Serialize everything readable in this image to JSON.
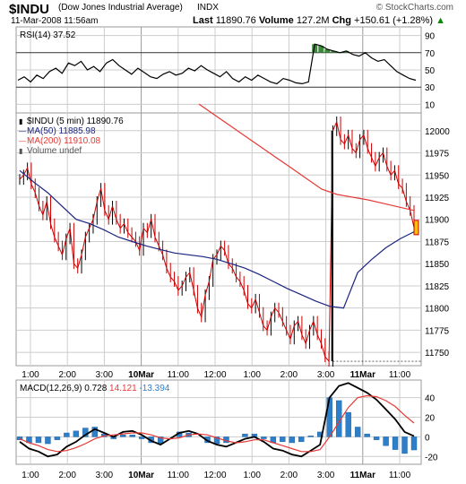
{
  "header": {
    "title": "$INDU",
    "subtitle": "(Dow Jones Industrial Average)",
    "ticker": "INDX",
    "date": "11-Mar-2008 11:56am",
    "last_label": "Last",
    "last_value": "11890.76",
    "volume_label": "Volume",
    "volume_value": "127.2M",
    "chg_label": "Chg",
    "chg_value": "+150.61 (+1.28%)",
    "chg_arrow": "▲",
    "brand": "© StockCharts.com",
    "brand_mark": "©"
  },
  "colors": {
    "price_up": "#000000",
    "price_down": "#cc0000",
    "ma50": "#1a237e",
    "ma200": "#e53935",
    "macd_line": "#000000",
    "signal_line": "#e53935",
    "histogram": "#2e7fc9",
    "rsi_line": "#000000",
    "rsi_fill_overbought": "#3a8a3a",
    "gridline": "#cccccc"
  },
  "rsi_panel": {
    "label": "RSI(14)",
    "value": "37.52",
    "tick_labels": [
      "90",
      "70",
      "50",
      "30",
      "10"
    ]
  },
  "price_panel": {
    "legend": [
      {
        "marker": "▮",
        "text": "$INDU (5 min) 11890.76",
        "color": "#000000"
      },
      {
        "marker": "—",
        "text": "MA(50) 11885.98",
        "color": "#1a237e"
      },
      {
        "marker": "—",
        "text": "MA(200) 11910.08",
        "color": "#e53935"
      },
      {
        "marker": "▮",
        "text": "Volume undef",
        "color": "#555555"
      }
    ],
    "tick_labels": [
      "12000",
      "11975",
      "11950",
      "11925",
      "11900",
      "11875",
      "11850",
      "11825",
      "11800",
      "11775",
      "11750"
    ]
  },
  "macd_panel": {
    "label": "MACD(12,26,9)",
    "macd_value": "0.728",
    "signal_value": "14.121",
    "hist_value": "-13.394",
    "tick_labels": [
      "40",
      "20",
      "0",
      "-20"
    ]
  },
  "x_axis_labels": [
    "1:00",
    "2:00",
    "3:00",
    "10Mar",
    "11:00",
    "12:00",
    "1:00",
    "2:00",
    "3:00",
    "11Mar",
    "11:00"
  ],
  "chart_data": [
    {
      "type": "line",
      "title": "RSI(14) 37.52",
      "ylim": [
        0,
        100
      ],
      "reference_lines": [
        70,
        30
      ],
      "series": [
        {
          "name": "RSI(14)",
          "values": [
            38,
            42,
            36,
            44,
            40,
            48,
            52,
            46,
            58,
            55,
            60,
            50,
            54,
            48,
            58,
            62,
            55,
            50,
            45,
            52,
            47,
            42,
            40,
            45,
            48,
            44,
            46,
            52,
            49,
            55,
            50,
            46,
            42,
            48,
            40,
            36,
            42,
            38,
            44,
            40,
            36,
            34,
            40,
            38,
            35,
            34,
            36,
            80,
            78,
            74,
            72,
            70,
            72,
            68,
            66,
            70,
            64,
            60,
            62,
            55,
            48,
            44,
            40,
            38
          ]
        }
      ]
    },
    {
      "type": "line",
      "title": "$INDU (5 min) 11890.76",
      "ylim": [
        11735,
        12020
      ],
      "series": [
        {
          "name": "$INDU (5 min)",
          "values": [
            11945,
            11950,
            11958,
            11940,
            11930,
            11915,
            11905,
            11920,
            11895,
            11880,
            11870,
            11860,
            11878,
            11890,
            11850,
            11845,
            11860,
            11880,
            11890,
            11900,
            11920,
            11935,
            11910,
            11900,
            11915,
            11900,
            11890,
            11895,
            11885,
            11880,
            11875,
            11865,
            11890,
            11885,
            11900,
            11880,
            11870,
            11860,
            11845,
            11835,
            11830,
            11820,
            11825,
            11835,
            11840,
            11820,
            11800,
            11790,
            11815,
            11830,
            11855,
            11860,
            11870,
            11865,
            11850,
            11845,
            11835,
            11830,
            11820,
            11805,
            11800,
            11810,
            11795,
            11780,
            11775,
            11790,
            11800,
            11795,
            11785,
            11775,
            11765,
            11780,
            11785,
            11770,
            11760,
            11775,
            11785,
            11770,
            11760,
            11745,
            11740,
            12000,
            12010,
            11990,
            11985,
            11995,
            11980,
            11975,
            11990,
            11995,
            11980,
            11970,
            11960,
            11970,
            11975,
            11960,
            11950,
            11955,
            11940,
            11935,
            11920,
            11910,
            11890.76
          ]
        },
        {
          "name": "MA(50)",
          "values": [
            11955,
            11942,
            11930,
            11915,
            11900,
            11895,
            11888,
            11880,
            11875,
            11870,
            11866,
            11862,
            11860,
            11858,
            11855,
            11850,
            11845,
            11838,
            11830,
            11822,
            11815,
            11808,
            11802,
            11800,
            11840,
            11855,
            11868,
            11878,
            11885.98
          ]
        },
        {
          "name": "MA(200)",
          "values": [
            12030,
            12018,
            12006,
            11994,
            11982,
            11970,
            11958,
            11946,
            11934,
            11928,
            11925,
            11922,
            11918,
            11914,
            11910.08
          ]
        }
      ]
    },
    {
      "type": "line",
      "title": "MACD(12,26,9)",
      "ylim": [
        -28,
        58
      ],
      "series": [
        {
          "name": "MACD(12,26,9)",
          "values": [
            -5,
            -12,
            -15,
            -20,
            -18,
            -10,
            -5,
            2,
            8,
            4,
            0,
            5,
            6,
            2,
            -4,
            -8,
            -2,
            4,
            6,
            3,
            -4,
            -8,
            -10,
            -6,
            -2,
            0,
            -5,
            -12,
            -14,
            -18,
            -20,
            -14,
            -8,
            40,
            52,
            55,
            50,
            45,
            38,
            28,
            18,
            5,
            0.728
          ]
        },
        {
          "name": "Signal",
          "values": [
            -2,
            -6,
            -9,
            -13,
            -15,
            -14,
            -11,
            -7,
            -2,
            1,
            2,
            3,
            4,
            4,
            2,
            -1,
            -2,
            -1,
            2,
            3,
            2,
            -1,
            -4,
            -6,
            -5,
            -3,
            -3,
            -6,
            -9,
            -12,
            -15,
            -15,
            -13,
            0,
            15,
            30,
            40,
            42,
            41,
            37,
            31,
            22,
            14.121
          ]
        },
        {
          "name": "Histogram",
          "values": [
            -3,
            -6,
            -6,
            -7,
            -3,
            4,
            6,
            9,
            10,
            3,
            -2,
            2,
            2,
            -2,
            -6,
            -7,
            0,
            5,
            4,
            0,
            -6,
            -7,
            -6,
            0,
            3,
            3,
            -2,
            -6,
            -5,
            -6,
            -5,
            1,
            5,
            40,
            37,
            25,
            10,
            3,
            -3,
            -9,
            -13,
            -17,
            -13.394
          ]
        }
      ]
    }
  ]
}
